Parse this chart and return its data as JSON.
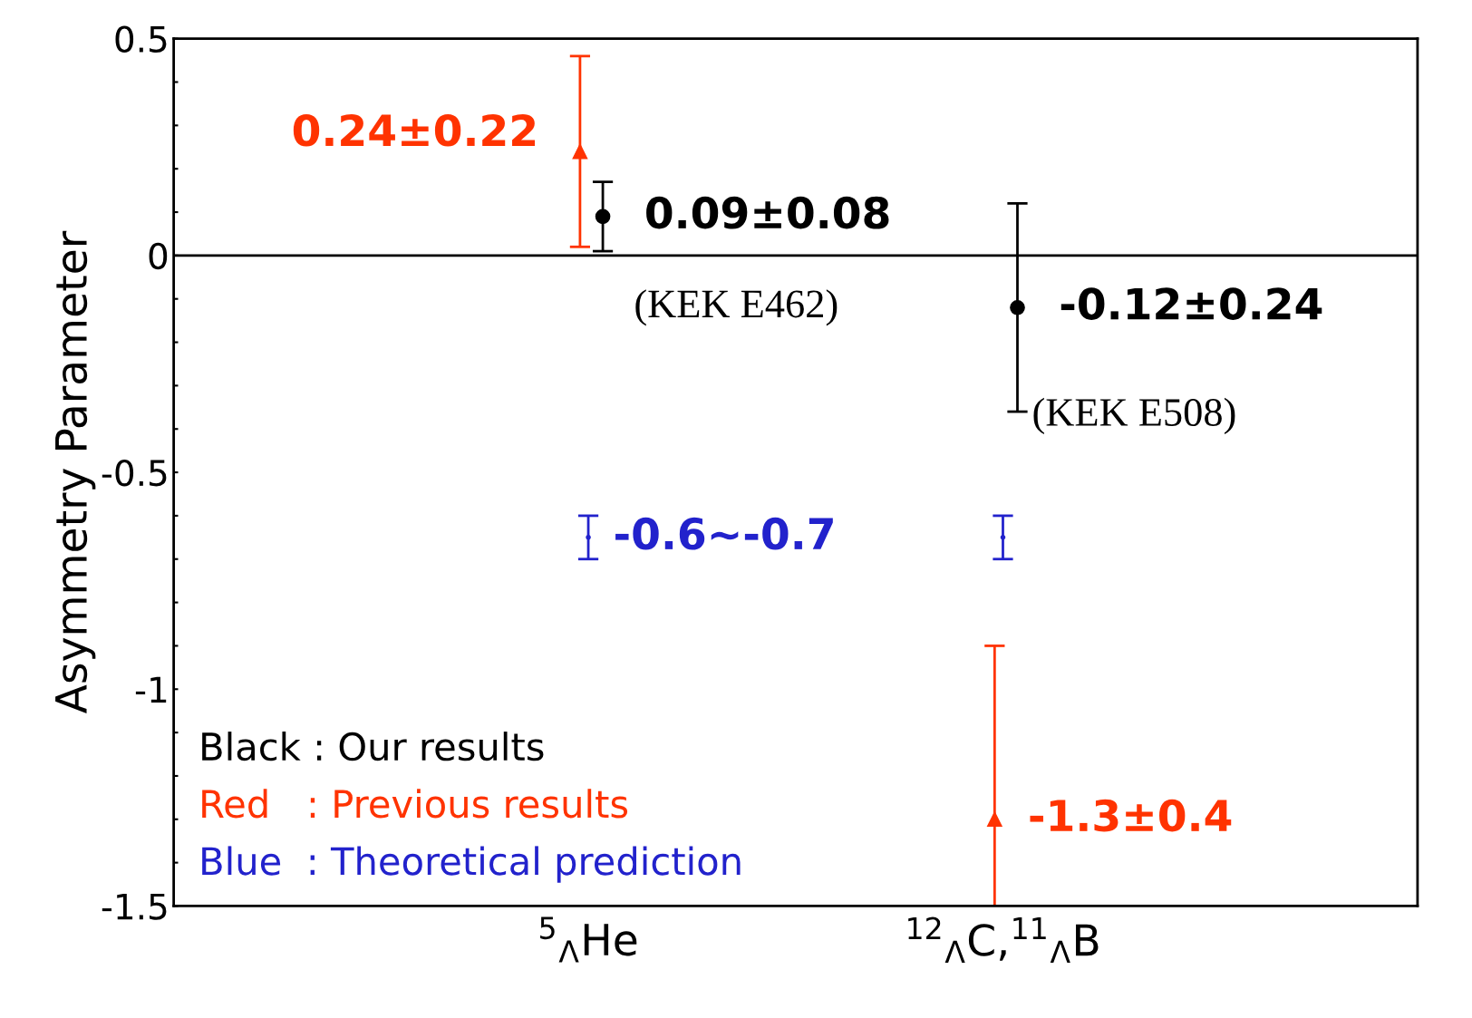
{
  "chart_data": {
    "type": "scatter",
    "ylabel": "Asymmetry Parameter",
    "categories": [
      "$^{5}$$_{Λ}$He",
      "$^{12}$$_{Λ}$C,$^{11}$$_{Λ}$B"
    ],
    "ylim": [
      -1.5,
      0.5
    ],
    "yticks": [
      {
        "value": -1.5,
        "label": "-1.5"
      },
      {
        "value": -1.4,
        "label": null
      },
      {
        "value": -1.3,
        "label": null
      },
      {
        "value": -1.2,
        "label": null
      },
      {
        "value": -1.1,
        "label": null
      },
      {
        "value": -1,
        "label": "-1"
      },
      {
        "value": -0.9,
        "label": null
      },
      {
        "value": -0.8,
        "label": null
      },
      {
        "value": -0.7,
        "label": null
      },
      {
        "value": -0.6,
        "label": null
      },
      {
        "value": -0.5,
        "label": "-0.5"
      },
      {
        "value": -0.4,
        "label": null
      },
      {
        "value": -0.3,
        "label": null
      },
      {
        "value": -0.2,
        "label": null
      },
      {
        "value": -0.1,
        "label": null
      },
      {
        "value": 0,
        "label": "0"
      },
      {
        "value": 0.1,
        "label": null
      },
      {
        "value": 0.2,
        "label": null
      },
      {
        "value": 0.3,
        "label": null
      },
      {
        "value": 0.4,
        "label": null
      },
      {
        "value": 0.5,
        "label": "0.5"
      }
    ],
    "series": [
      {
        "name": "Black : Our results",
        "color": "#000000",
        "marker": "circle",
        "values": [
          0.09,
          -0.12
        ],
        "errors": [
          0.08,
          0.24
        ],
        "value_labels": [
          "0.09±0.08",
          "-0.12±0.24"
        ]
      },
      {
        "name": "Red   : Previous results",
        "color": "#ff3300",
        "marker": "triangle",
        "values": [
          0.24,
          -1.3
        ],
        "errors": [
          0.22,
          0.4
        ],
        "value_labels": [
          "0.24±0.22",
          "-1.3±0.4"
        ]
      },
      {
        "name": "Blue  : Theoretical prediction",
        "color": "#2222cc",
        "marker": "none",
        "values": [
          -0.65,
          -0.65
        ],
        "errors": [
          0.05,
          0.05
        ],
        "value_labels": [
          "-0.6∼-0.7",
          null
        ]
      }
    ],
    "ref_lines": [
      {
        "axis": "y",
        "value": 0,
        "color": "#000000"
      }
    ],
    "annotations": [
      "(KEK E462)",
      "(KEK E508)"
    ],
    "legend": "bottom left",
    "grid": false
  }
}
